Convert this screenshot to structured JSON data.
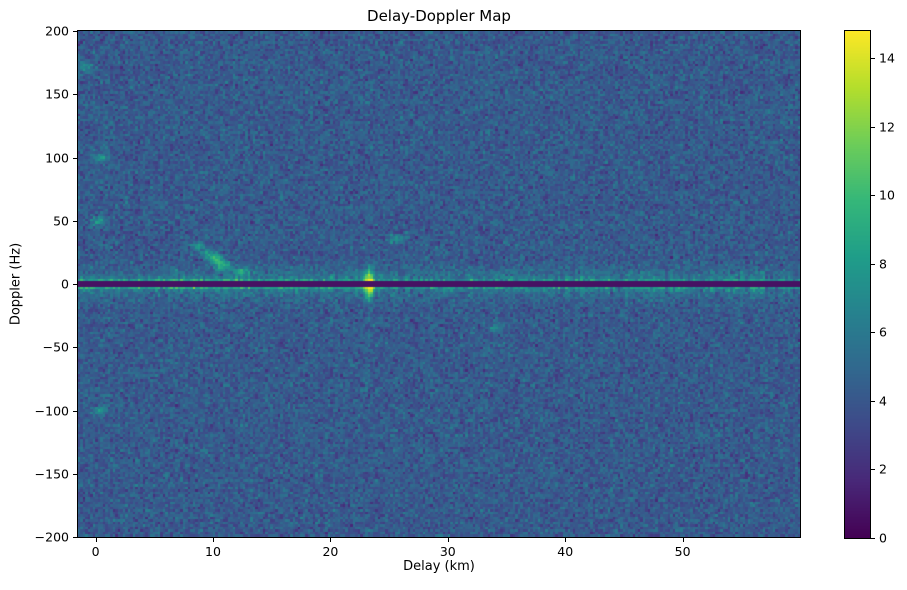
{
  "chart_data": {
    "type": "heatmap",
    "title": "Delay-Doppler Map",
    "xlabel": "Delay (km)",
    "ylabel": "Doppler (Hz)",
    "xlim": [
      -1.5,
      60
    ],
    "ylim": [
      -200,
      200
    ],
    "xticks": [
      0,
      10,
      20,
      30,
      40,
      50
    ],
    "yticks": [
      200,
      150,
      100,
      50,
      0,
      -50,
      -100,
      -150,
      -200
    ],
    "colormap": "viridis",
    "colorbar": {
      "vmin": 0,
      "vmax": 14.8,
      "ticks": [
        0,
        2,
        4,
        6,
        8,
        10,
        12,
        14
      ]
    },
    "grid": {
      "cols": 289,
      "rows": 202
    },
    "background_noise": {
      "mean": 4.2,
      "std": 0.85
    },
    "zero_doppler_ridge": {
      "doppler_hz": 0,
      "core_sigma_hz": 1.8,
      "halo_sigma_hz": 7.0,
      "halo_amp": 2.2,
      "amp_base": 4.4,
      "amp_peak_extra": 6.0,
      "amp_peak_center_km": 5,
      "amp_peak_width_km": 11,
      "column_jitter": 3.5,
      "notch_value": 0.7,
      "notch_halfwidth_hz": 1.0
    },
    "target_spike": {
      "delay_km": 23.3,
      "sigma_km": 0.28,
      "sigma_hz": 8,
      "amp": 9.5
    },
    "speckles": [
      {
        "delay_km": 10.3,
        "doppler_hz": 19,
        "amp": 5.5
      },
      {
        "delay_km": 10.9,
        "doppler_hz": 14,
        "amp": 5.0
      },
      {
        "delay_km": 9.6,
        "doppler_hz": 24,
        "amp": 3.6
      },
      {
        "delay_km": 12.4,
        "doppler_hz": 10,
        "amp": 4.2
      },
      {
        "delay_km": 8.7,
        "doppler_hz": 30,
        "amp": 3.0
      },
      {
        "delay_km": 0.3,
        "doppler_hz": 50,
        "amp": 3.4
      },
      {
        "delay_km": 0.5,
        "doppler_hz": 100,
        "amp": 3.6
      },
      {
        "delay_km": 0.4,
        "doppler_hz": -100,
        "amp": 2.8
      },
      {
        "delay_km": -0.8,
        "doppler_hz": 172,
        "amp": 2.6
      },
      {
        "delay_km": 25.6,
        "doppler_hz": 36,
        "amp": 3.0
      },
      {
        "delay_km": 34.0,
        "doppler_hz": -35,
        "amp": 2.6
      }
    ],
    "viridis_stops": [
      [
        68,
        1,
        84
      ],
      [
        72,
        40,
        120
      ],
      [
        62,
        74,
        137
      ],
      [
        49,
        104,
        142
      ],
      [
        38,
        130,
        142
      ],
      [
        31,
        158,
        137
      ],
      [
        53,
        183,
        121
      ],
      [
        109,
        205,
        89
      ],
      [
        180,
        222,
        44
      ],
      [
        253,
        231,
        37
      ]
    ],
    "seed": 1337,
    "legend_position": "none",
    "grid_lines": false
  }
}
